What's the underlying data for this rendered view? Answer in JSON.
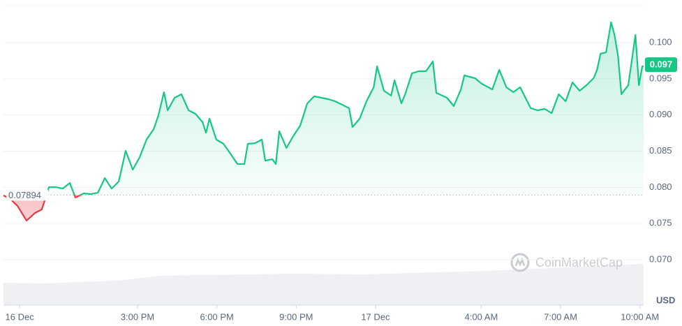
{
  "chart_data": {
    "type": "line",
    "color": "#16c784",
    "below_color": "#ea3943",
    "baseline": 0.07894,
    "current_price": 0.097,
    "y_unit": "USD",
    "watermark": "CoinMarketCap",
    "grid": true,
    "xlim": [
      9.93,
      34.14
    ],
    "xticks": [
      {
        "value": 10.54,
        "label": "16 Dec"
      },
      {
        "value": 15,
        "label": "3:00 PM"
      },
      {
        "value": 18,
        "label": "6:00 PM"
      },
      {
        "value": 21,
        "label": "9:00 PM"
      },
      {
        "value": 24,
        "label": "17 Dec"
      },
      {
        "value": 28,
        "label": "4:00 AM"
      },
      {
        "value": 31,
        "label": "7:00 AM"
      },
      {
        "value": 34,
        "label": "10:00 AM"
      }
    ],
    "ylim": [
      0.06373,
      0.10511
    ],
    "yticks": [
      {
        "value": 0.07,
        "label": "0.070"
      },
      0.075,
      {
        "value": 0.08,
        "label": "0.080"
      },
      0.085,
      {
        "value": 0.09,
        "label": "0.090"
      },
      0.095,
      {
        "value": 0.1,
        "label": "0.100"
      }
    ],
    "x": [
      9.93,
      10.19,
      10.46,
      10.8,
      11.12,
      11.38,
      11.65,
      11.91,
      12.17,
      12.44,
      12.65,
      12.97,
      13.23,
      13.5,
      13.76,
      14.02,
      14.29,
      14.55,
      14.82,
      15.08,
      15.34,
      15.61,
      15.79,
      16.0,
      16.14,
      16.4,
      16.66,
      16.93,
      17.19,
      17.46,
      17.59,
      17.72,
      17.98,
      18.25,
      18.51,
      18.78,
      19.04,
      19.17,
      19.44,
      19.7,
      19.83,
      20.1,
      20.23,
      20.36,
      20.63,
      20.89,
      21.15,
      21.42,
      21.68,
      21.95,
      22.21,
      22.47,
      22.74,
      23.0,
      23.13,
      23.4,
      23.66,
      23.93,
      24.06,
      24.32,
      24.59,
      24.72,
      24.98,
      25.12,
      25.38,
      25.64,
      25.91,
      26.17,
      26.3,
      26.7,
      26.96,
      27.23,
      27.36,
      27.76,
      28.02,
      28.42,
      28.68,
      28.95,
      29.21,
      29.47,
      29.87,
      30.13,
      30.4,
      30.66,
      30.93,
      31.19,
      31.45,
      31.72,
      31.98,
      32.25,
      32.38,
      32.51,
      32.72,
      32.91,
      33.04,
      33.17,
      33.3,
      33.56,
      33.7,
      33.83,
      33.96,
      34.09,
      34.14
    ],
    "values": [
      0.07887,
      0.07838,
      0.07742,
      0.07539,
      0.07645,
      0.07694,
      0.08002,
      0.08002,
      0.07983,
      0.0806,
      0.07858,
      0.07916,
      0.07906,
      0.07925,
      0.08128,
      0.07983,
      0.0808,
      0.08504,
      0.08244,
      0.08417,
      0.08659,
      0.08803,
      0.08996,
      0.09315,
      0.09064,
      0.09238,
      0.09286,
      0.09064,
      0.09016,
      0.089,
      0.08755,
      0.08948,
      0.08659,
      0.08601,
      0.08466,
      0.08321,
      0.08321,
      0.08601,
      0.0861,
      0.08659,
      0.08369,
      0.08388,
      0.08321,
      0.08774,
      0.08543,
      0.08707,
      0.08852,
      0.0916,
      0.09257,
      0.09238,
      0.09218,
      0.09189,
      0.09141,
      0.09093,
      0.08832,
      0.08948,
      0.09189,
      0.09382,
      0.09672,
      0.09334,
      0.09267,
      0.09479,
      0.0916,
      0.09286,
      0.09575,
      0.09604,
      0.09604,
      0.09739,
      0.09305,
      0.09238,
      0.09122,
      0.09353,
      0.09546,
      0.09508,
      0.09431,
      0.09353,
      0.09624,
      0.09382,
      0.09315,
      0.09382,
      0.09093,
      0.09064,
      0.09083,
      0.09025,
      0.09286,
      0.09189,
      0.0945,
      0.09334,
      0.09411,
      0.09508,
      0.09624,
      0.09846,
      0.09865,
      0.1028,
      0.10106,
      0.09817,
      0.09286,
      0.09411,
      0.09768,
      0.10106,
      0.09411,
      0.09672,
      0.09672
    ]
  }
}
